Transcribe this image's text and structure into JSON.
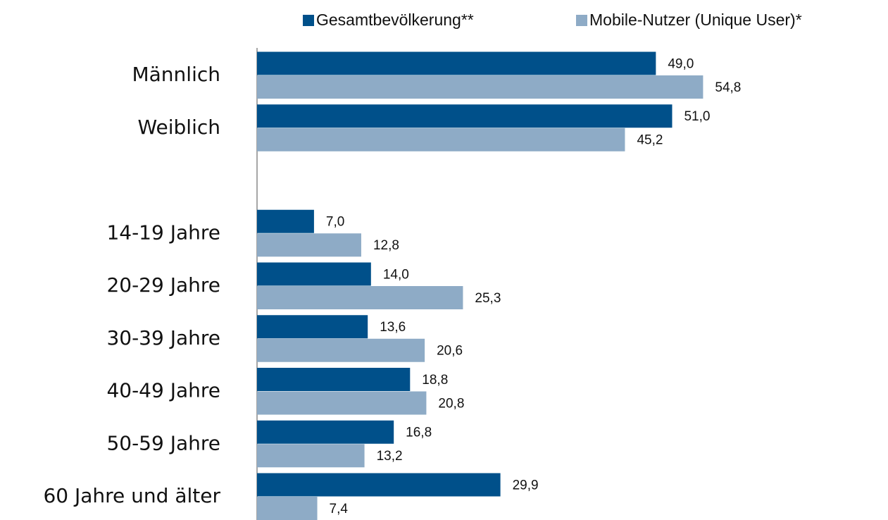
{
  "chart_data": {
    "type": "hbar",
    "categories": [
      "Männlich",
      "Weiblich",
      null,
      "14-19 Jahre",
      "20-29 Jahre",
      "30-39 Jahre",
      "40-49 Jahre",
      "50-59 Jahre",
      "60 Jahre und älter"
    ],
    "series": [
      {
        "name": "Gesamtbevölkerung**",
        "color": "#00508a",
        "values": [
          49.0,
          51.0,
          null,
          7.0,
          14.0,
          13.6,
          18.8,
          16.8,
          29.9
        ],
        "value_labels": [
          "49,0",
          "51,0",
          null,
          "7,0",
          "14,0",
          "13,6",
          "18,8",
          "16,8",
          "29,9"
        ]
      },
      {
        "name": "Mobile-Nutzer (Unique User)*",
        "color": "#8eabc6",
        "values": [
          54.8,
          45.2,
          null,
          12.8,
          25.3,
          20.6,
          20.8,
          13.2,
          7.4
        ],
        "value_labels": [
          "54,8",
          "45,2",
          null,
          "12,8",
          "25,3",
          "20,6",
          "20,8",
          "13,2",
          "7,4"
        ]
      }
    ],
    "xlim": [
      0,
      77
    ],
    "legend": "top"
  }
}
